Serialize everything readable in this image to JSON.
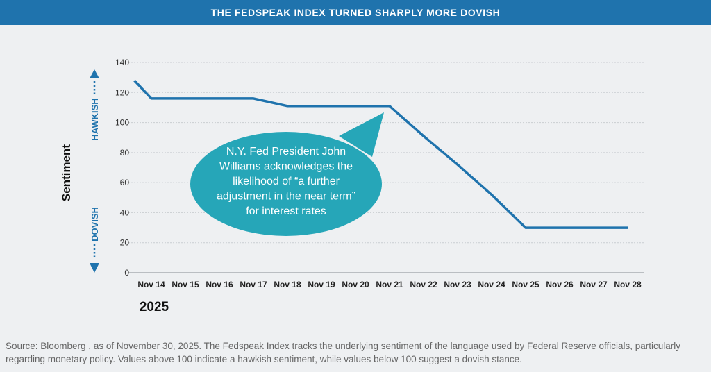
{
  "header": {
    "title": "THE FEDSPEAK INDEX TURNED SHARPLY MORE DOVISH"
  },
  "chart_data": {
    "type": "line",
    "title": "THE FEDSPEAK INDEX TURNED SHARPLY MORE DOVISH",
    "xlabel": "2025",
    "ylabel": "Sentiment",
    "categories": [
      "Nov 14",
      "Nov 15",
      "Nov 16",
      "Nov 17",
      "Nov 18",
      "Nov 19",
      "Nov 20",
      "Nov 21",
      "Nov 22",
      "Nov 23",
      "Nov 24",
      "Nov 25",
      "Nov 26",
      "Nov 27",
      "Nov 28"
    ],
    "series": [
      {
        "name": "Fedspeak Index",
        "color": "#1f73ad",
        "points": [
          {
            "x": 13.5,
            "y": 128
          },
          {
            "x": 14,
            "y": 116
          },
          {
            "x": 15,
            "y": 116
          },
          {
            "x": 16,
            "y": 116
          },
          {
            "x": 17,
            "y": 116
          },
          {
            "x": 18,
            "y": 111
          },
          {
            "x": 19,
            "y": 111
          },
          {
            "x": 20,
            "y": 111
          },
          {
            "x": 21,
            "y": 111
          },
          {
            "x": 22,
            "y": 91
          },
          {
            "x": 23,
            "y": 72
          },
          {
            "x": 24,
            "y": 52
          },
          {
            "x": 25,
            "y": 30
          },
          {
            "x": 26,
            "y": 30
          },
          {
            "x": 27,
            "y": 30
          },
          {
            "x": 28,
            "y": 30
          }
        ]
      }
    ],
    "yticks": [
      0,
      20,
      40,
      60,
      80,
      100,
      120,
      140
    ],
    "ylim": [
      0,
      140
    ],
    "grid": true,
    "hawkish_label": "HAWKISH",
    "dovish_label": "DOVISH",
    "annotation": {
      "lines": [
        "N.Y. Fed President John",
        "Williams acknowledges the",
        "likelihood of “a further",
        "adjustment in the near term”",
        "for interest rates"
      ],
      "color": "#26a6b8"
    }
  },
  "footer": {
    "source": "Source: Bloomberg , as of November 30, 2025. The Fedspeak Index tracks the underlying sentiment of the language used by Federal Reserve officials, particularly regarding monetary policy. Values above 100 indicate a hawkish sentiment, while values below 100 suggest a dovish stance."
  }
}
